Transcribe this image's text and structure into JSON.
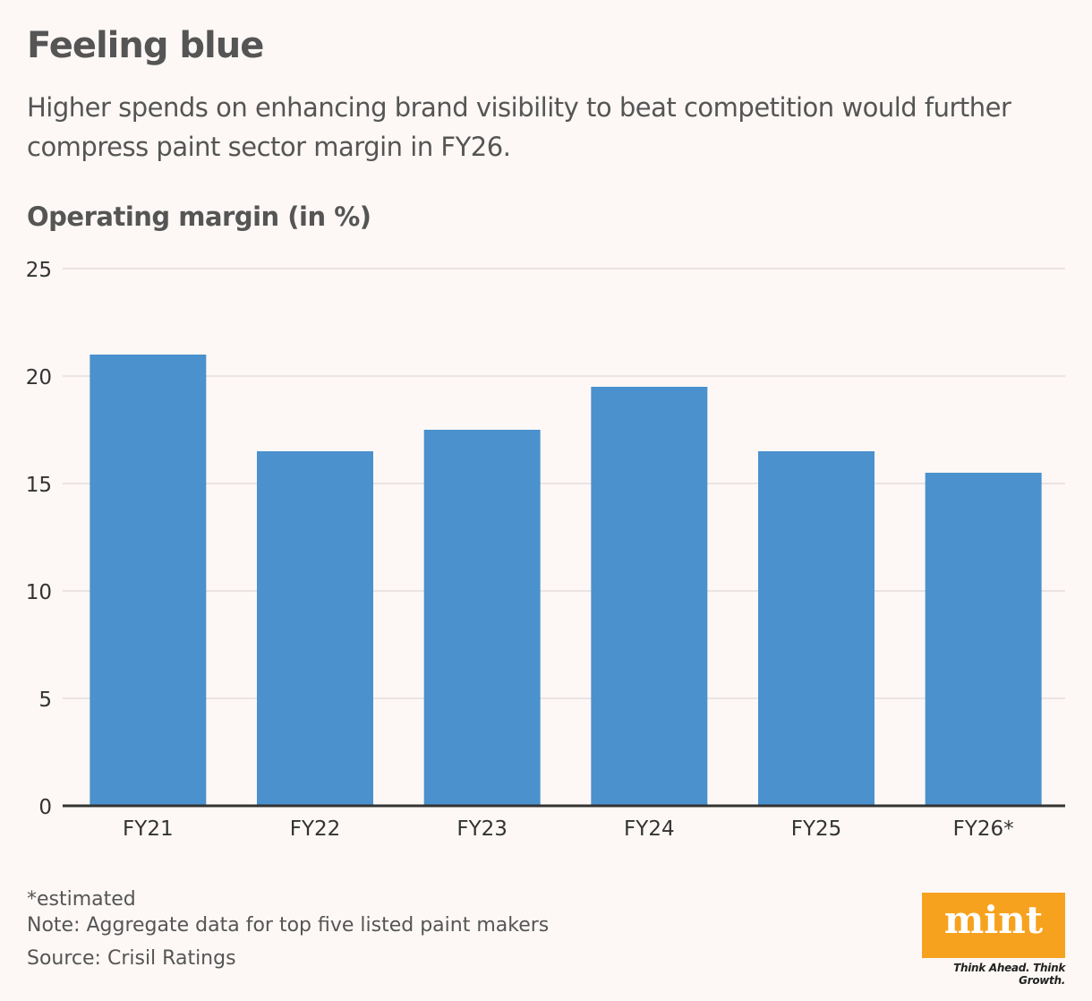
{
  "header": {
    "title": "Feeling blue",
    "subtitle": "Higher spends on enhancing brand visibility to beat competition would further compress paint sector margin in FY26.",
    "unit_label": "Operating margin (in %)"
  },
  "chart_data": {
    "type": "bar",
    "categories": [
      "FY21",
      "FY22",
      "FY23",
      "FY24",
      "FY25",
      "FY26*"
    ],
    "values": [
      21,
      16.5,
      17.5,
      19.5,
      16.5,
      15.5
    ],
    "ylim": [
      0,
      25
    ],
    "yticks": [
      0,
      5,
      10,
      15,
      20,
      25
    ],
    "title": "Operating margin (in %)",
    "xlabel": "",
    "ylabel": "",
    "grid": true,
    "bar_color": "#4b91cd"
  },
  "footer": {
    "estimated_note": "*estimated",
    "note": "Note: Aggregate data for top five listed paint makers",
    "source": "Source: Crisil Ratings"
  },
  "brand": {
    "logo": "mint",
    "tagline": "Think Ahead. Think Growth.",
    "logo_color": "#f7a21e"
  }
}
